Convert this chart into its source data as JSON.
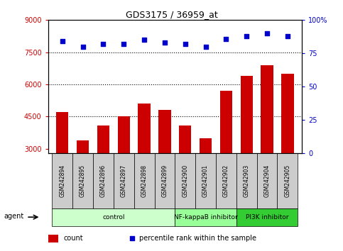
{
  "title": "GDS3175 / 36959_at",
  "samples": [
    "GSM242894",
    "GSM242895",
    "GSM242896",
    "GSM242897",
    "GSM242898",
    "GSM242899",
    "GSM242900",
    "GSM242901",
    "GSM242902",
    "GSM242903",
    "GSM242904",
    "GSM242905"
  ],
  "counts": [
    4700,
    3400,
    4100,
    4500,
    5100,
    4800,
    4100,
    3500,
    5700,
    6400,
    6900,
    6500
  ],
  "percentiles": [
    84,
    80,
    82,
    82,
    85,
    83,
    82,
    80,
    86,
    88,
    90,
    88
  ],
  "bar_color": "#cc0000",
  "dot_color": "#0000cc",
  "ylim_left": [
    2800,
    9000
  ],
  "ylim_right": [
    0,
    100
  ],
  "yticks_left": [
    3000,
    4500,
    6000,
    7500,
    9000
  ],
  "yticks_right": [
    0,
    25,
    50,
    75,
    100
  ],
  "ytick_labels_right": [
    "0",
    "25",
    "50",
    "75",
    "100%"
  ],
  "grid_yvals": [
    4500,
    6000,
    7500
  ],
  "groups": [
    {
      "label": "control",
      "start": 0,
      "end": 6,
      "color": "#ccffcc"
    },
    {
      "label": "NF-kappaB inhibitor",
      "start": 6,
      "end": 9,
      "color": "#99ff99"
    },
    {
      "label": "PI3K inhibitor",
      "start": 9,
      "end": 12,
      "color": "#33cc33"
    }
  ],
  "agent_label": "agent",
  "legend_count_label": "count",
  "legend_pct_label": "percentile rank within the sample",
  "bar_color_legend": "#cc0000",
  "dot_color_legend": "#0000cc",
  "tick_label_color_left": "#cc0000",
  "tick_label_color_right": "#0000cc",
  "xlabel_area_color": "#cccccc",
  "figsize": [
    4.83,
    3.54
  ],
  "dpi": 100
}
